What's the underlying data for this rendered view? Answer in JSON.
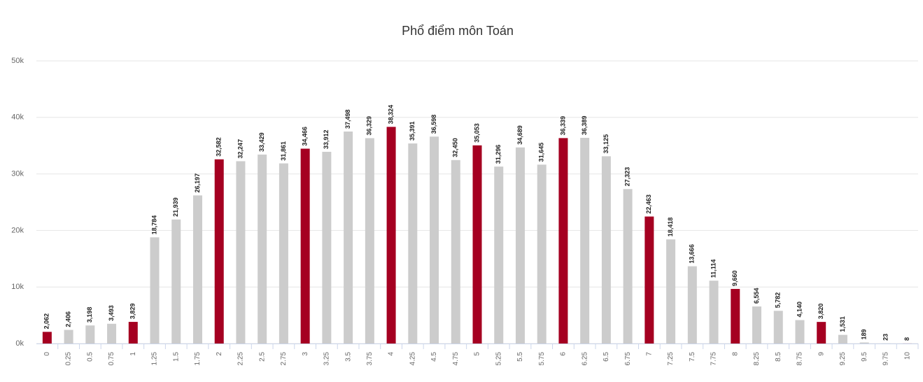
{
  "chart_data": {
    "type": "bar",
    "title": "Phổ điểm môn Toán",
    "categories": [
      "0",
      "0.25",
      "0.5",
      "0.75",
      "1",
      "1.25",
      "1.5",
      "1.75",
      "2",
      "2.25",
      "2.5",
      "2.75",
      "3",
      "3.25",
      "3.5",
      "3.75",
      "4",
      "4.25",
      "4.5",
      "4.75",
      "5",
      "5.25",
      "5.5",
      "5.75",
      "6",
      "6.25",
      "6.5",
      "6.75",
      "7",
      "7.25",
      "7.5",
      "7.75",
      "8",
      "8.25",
      "8.5",
      "8.75",
      "9",
      "9.25",
      "9.5",
      "9.75",
      "10"
    ],
    "values": [
      2062,
      2406,
      3198,
      3493,
      3829,
      18784,
      21939,
      26197,
      32582,
      32247,
      33429,
      31861,
      34466,
      33912,
      37498,
      36329,
      38324,
      35391,
      36598,
      32450,
      35053,
      31296,
      34689,
      31645,
      36339,
      36389,
      33125,
      27323,
      22463,
      18418,
      13666,
      11114,
      9660,
      6554,
      5782,
      4140,
      3820,
      1531,
      189,
      23,
      8
    ],
    "value_labels": [
      "2,062",
      "2,406",
      "3,198",
      "3,493",
      "3,829",
      "18,784",
      "21,939",
      "26,197",
      "32,582",
      "32,247",
      "33,429",
      "31,861",
      "34,466",
      "33,912",
      "37,498",
      "36,329",
      "38,324",
      "35,391",
      "36,598",
      "32,450",
      "35,053",
      "31,296",
      "34,689",
      "31,645",
      "36,339",
      "36,389",
      "33,125",
      "27,323",
      "22,463",
      "18,418",
      "13,666",
      "11,114",
      "9,660",
      "6,554",
      "5,782",
      "4,140",
      "3,820",
      "1,531",
      "189",
      "23",
      "8"
    ],
    "colors": [
      "#a50021",
      "#cccccc",
      "#cccccc",
      "#cccccc",
      "#a50021",
      "#cccccc",
      "#cccccc",
      "#cccccc",
      "#a50021",
      "#cccccc",
      "#cccccc",
      "#cccccc",
      "#a50021",
      "#cccccc",
      "#cccccc",
      "#cccccc",
      "#a50021",
      "#cccccc",
      "#cccccc",
      "#cccccc",
      "#a50021",
      "#cccccc",
      "#cccccc",
      "#cccccc",
      "#a50021",
      "#cccccc",
      "#cccccc",
      "#cccccc",
      "#a50021",
      "#cccccc",
      "#cccccc",
      "#cccccc",
      "#a50021",
      "#cccccc",
      "#cccccc",
      "#cccccc",
      "#a50021",
      "#cccccc",
      "#cccccc",
      "#cccccc",
      "#a50021"
    ],
    "ylim": [
      0,
      50000
    ],
    "yticks": [
      {
        "value": 0,
        "label": "0k"
      },
      {
        "value": 10000,
        "label": "10k"
      },
      {
        "value": 20000,
        "label": "20k"
      },
      {
        "value": 30000,
        "label": "30k"
      },
      {
        "value": 40000,
        "label": "40k"
      },
      {
        "value": 50000,
        "label": "50k"
      }
    ],
    "grid": true
  }
}
